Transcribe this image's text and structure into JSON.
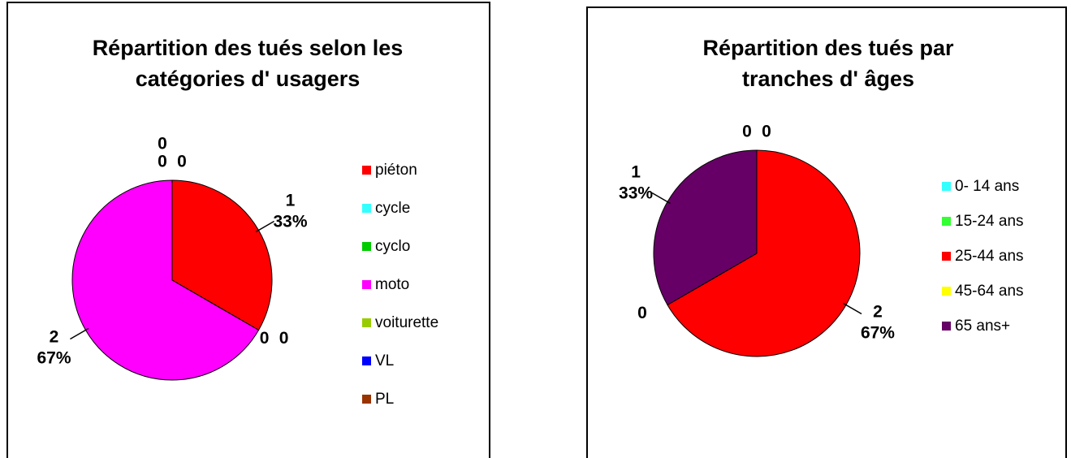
{
  "chart_data": [
    {
      "type": "pie",
      "title": "Répartition des tués selon les catégories d' usagers",
      "categories": [
        "piéton",
        "cycle",
        "cyclo",
        "moto",
        "voiturette",
        "VL",
        "PL"
      ],
      "values": [
        1,
        0,
        0,
        2,
        0,
        0,
        0
      ],
      "value_labels": [
        [
          "1",
          "33%"
        ],
        [
          "0"
        ],
        [
          "0"
        ],
        [
          "2",
          "67%"
        ],
        [
          "0"
        ],
        [
          "0"
        ],
        [
          "0"
        ]
      ],
      "colors": [
        "#ff0000",
        "#33ffff",
        "#00cc00",
        "#ff00ff",
        "#99cc00",
        "#0000ff",
        "#993300"
      ],
      "legend": "right"
    },
    {
      "type": "pie",
      "title": "Répartition des tués par tranches d' âges",
      "categories": [
        "0- 14 ans",
        "15-24 ans",
        "25-44 ans",
        "45-64 ans",
        "65 ans+"
      ],
      "values": [
        0,
        0,
        2,
        0,
        1
      ],
      "value_labels": [
        [
          "0"
        ],
        [
          "0"
        ],
        [
          "2",
          "67%"
        ],
        [
          "0"
        ],
        [
          "1",
          "33%"
        ]
      ],
      "colors": [
        "#33ffff",
        "#33ff33",
        "#ff0000",
        "#ffff00",
        "#660066"
      ],
      "legend": "right"
    }
  ]
}
